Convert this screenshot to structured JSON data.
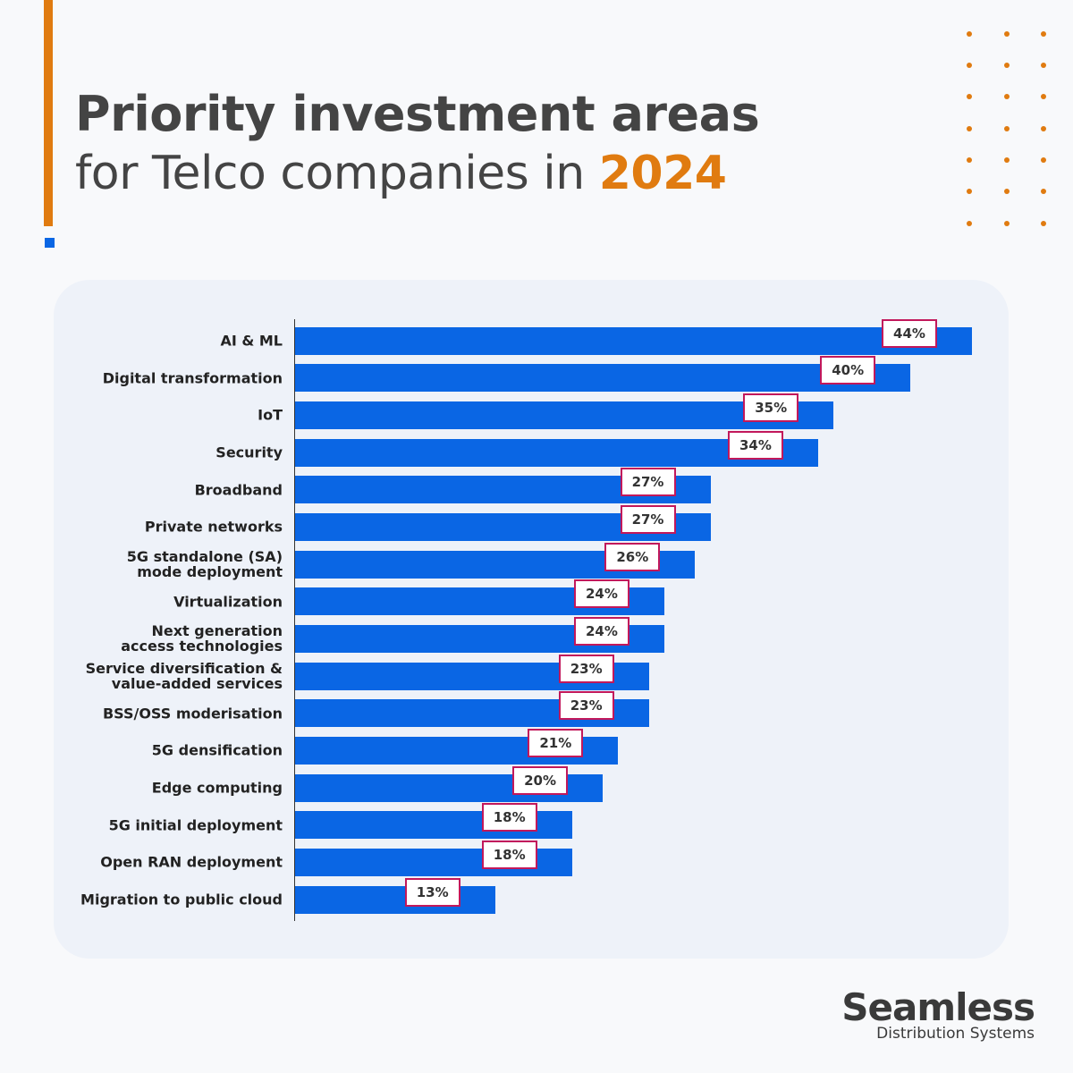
{
  "title": {
    "line1": "Priority investment areas",
    "line2": "for Telco companies in ",
    "highlight": "2024"
  },
  "brand": {
    "name": "Seamless",
    "tagline": "Distribution Systems"
  },
  "chart_data": {
    "type": "barh",
    "categories": [
      "AI & ML",
      "Digital transformation",
      "IoT",
      "Security",
      "Broadband",
      "Private networks",
      "5G standalone (SA)\nmode deployment",
      "Virtualization",
      "Next generation\naccess technologies",
      "Service diversification &\nvalue-added services",
      "BSS/OSS moderisation",
      "5G densification",
      "Edge computing",
      "5G initial deployment",
      "Open RAN deployment",
      "Migration to public cloud"
    ],
    "values": [
      44,
      40,
      35,
      34,
      27,
      27,
      26,
      24,
      24,
      23,
      23,
      21,
      20,
      18,
      18,
      13
    ],
    "value_labels": [
      "44%",
      "40%",
      "35%",
      "34%",
      "27%",
      "27%",
      "26%",
      "24%",
      "24%",
      "23%",
      "23%",
      "21%",
      "20%",
      "18%",
      "18%",
      "13%"
    ],
    "color": "#0a66e4",
    "xlim": [
      0,
      44
    ]
  }
}
